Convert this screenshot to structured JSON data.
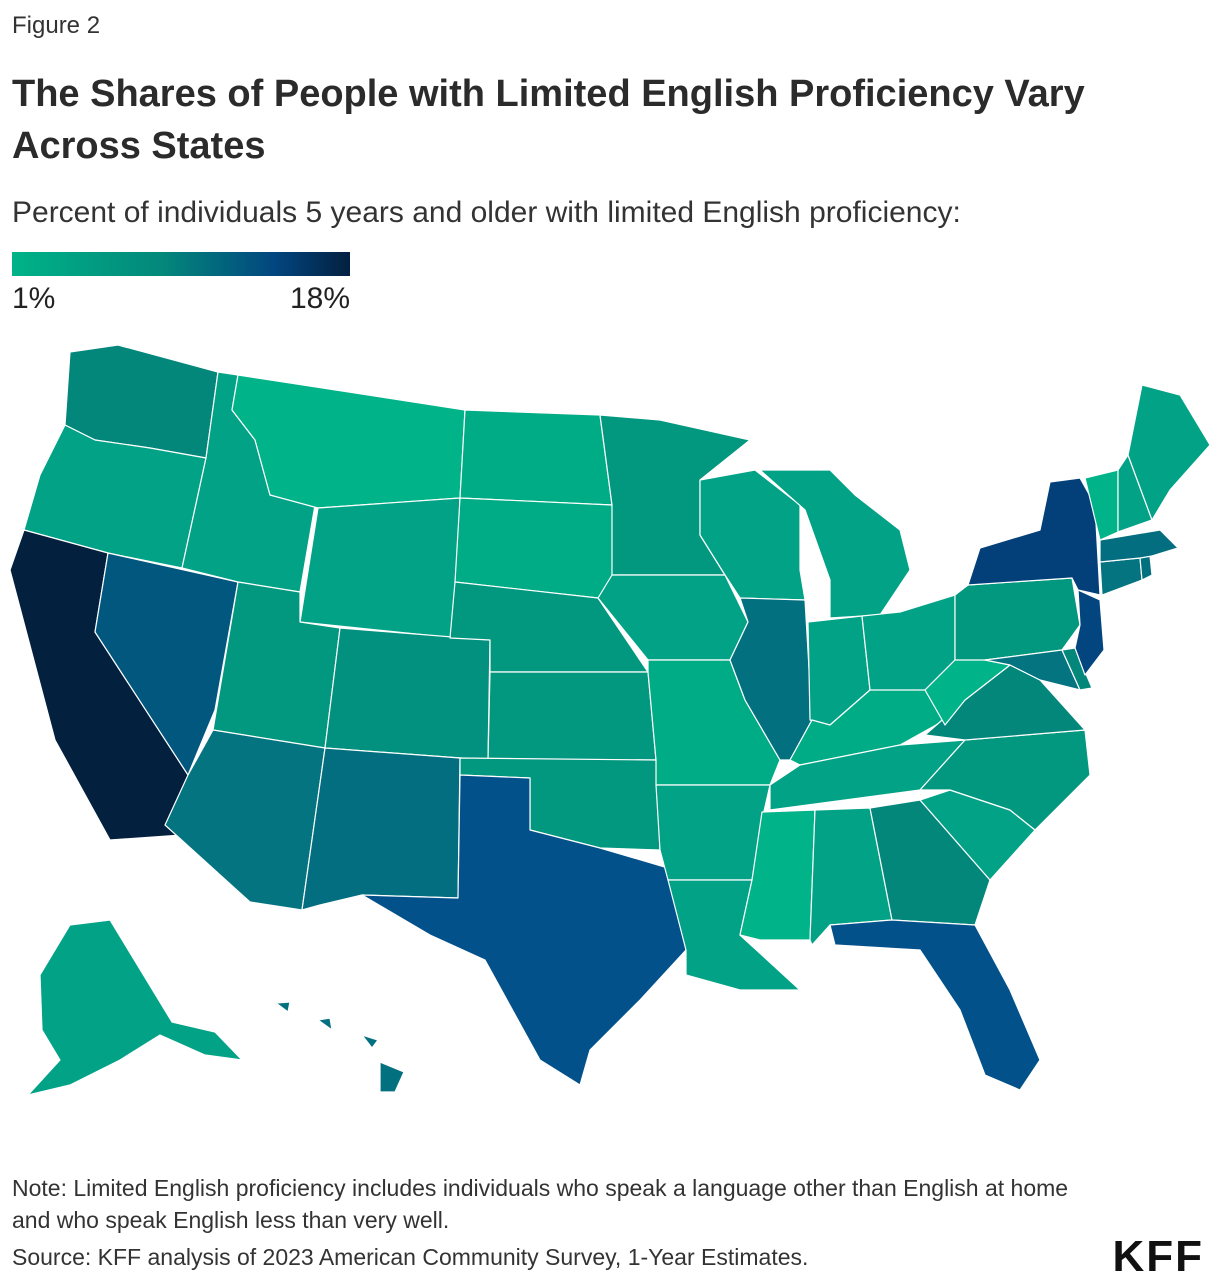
{
  "header": {
    "eyebrow": "Figure 2",
    "title": "The Shares of People with Limited English Proficiency Vary Across States",
    "subtitle": "Percent of individuals 5 years and older with limited English proficiency:"
  },
  "legend": {
    "min_label": "1%",
    "max_label": "18%",
    "min_value": 1,
    "max_value": 18,
    "colors": [
      "#00b388",
      "#03877b",
      "#02457f",
      "#03203f"
    ]
  },
  "map": {
    "type": "choropleth",
    "region": "United States",
    "states": [
      {
        "id": "WA",
        "color": "#03877b"
      },
      {
        "id": "OR",
        "color": "#02a286"
      },
      {
        "id": "CA",
        "color": "#03203f"
      },
      {
        "id": "NV",
        "color": "#02577f"
      },
      {
        "id": "ID",
        "color": "#02a286"
      },
      {
        "id": "MT",
        "color": "#00b388"
      },
      {
        "id": "WY",
        "color": "#02a286"
      },
      {
        "id": "UT",
        "color": "#02977f"
      },
      {
        "id": "AZ",
        "color": "#037480"
      },
      {
        "id": "CO",
        "color": "#03917f"
      },
      {
        "id": "NM",
        "color": "#036e7f"
      },
      {
        "id": "ND",
        "color": "#00ac86"
      },
      {
        "id": "SD",
        "color": "#00ac86"
      },
      {
        "id": "NE",
        "color": "#02977f"
      },
      {
        "id": "KS",
        "color": "#02977f"
      },
      {
        "id": "OK",
        "color": "#02977f"
      },
      {
        "id": "TX",
        "color": "#02518a"
      },
      {
        "id": "MN",
        "color": "#02977f"
      },
      {
        "id": "IA",
        "color": "#02a286"
      },
      {
        "id": "MO",
        "color": "#00ac86"
      },
      {
        "id": "AR",
        "color": "#02a286"
      },
      {
        "id": "LA",
        "color": "#02a286"
      },
      {
        "id": "WI",
        "color": "#02a286"
      },
      {
        "id": "IL",
        "color": "#03707f"
      },
      {
        "id": "MI",
        "color": "#02a286"
      },
      {
        "id": "IN",
        "color": "#02a286"
      },
      {
        "id": "OH",
        "color": "#02a286"
      },
      {
        "id": "KY",
        "color": "#00ac86"
      },
      {
        "id": "TN",
        "color": "#02a286"
      },
      {
        "id": "MS",
        "color": "#00b388"
      },
      {
        "id": "AL",
        "color": "#02a286"
      },
      {
        "id": "GA",
        "color": "#03877b"
      },
      {
        "id": "FL",
        "color": "#02518a"
      },
      {
        "id": "SC",
        "color": "#02a286"
      },
      {
        "id": "NC",
        "color": "#02977f"
      },
      {
        "id": "VA",
        "color": "#03877b"
      },
      {
        "id": "WV",
        "color": "#00b388"
      },
      {
        "id": "PA",
        "color": "#02977f"
      },
      {
        "id": "NY",
        "color": "#03407a"
      },
      {
        "id": "NJ",
        "color": "#02457f"
      },
      {
        "id": "DE",
        "color": "#03877b"
      },
      {
        "id": "MD",
        "color": "#037480"
      },
      {
        "id": "CT",
        "color": "#037480"
      },
      {
        "id": "RI",
        "color": "#03707f"
      },
      {
        "id": "MA",
        "color": "#036e7f"
      },
      {
        "id": "VT",
        "color": "#00b388"
      },
      {
        "id": "NH",
        "color": "#02a286"
      },
      {
        "id": "ME",
        "color": "#02a286"
      },
      {
        "id": "AK",
        "color": "#02a286"
      },
      {
        "id": "HI",
        "color": "#03707f"
      }
    ]
  },
  "footer": {
    "note": "Note: Limited English proficiency includes individuals who speak a language other than English at home and who speak English less than very well.",
    "source": "Source: KFF analysis of 2023 American Community Survey, 1-Year Estimates.",
    "logo": "KFF"
  }
}
